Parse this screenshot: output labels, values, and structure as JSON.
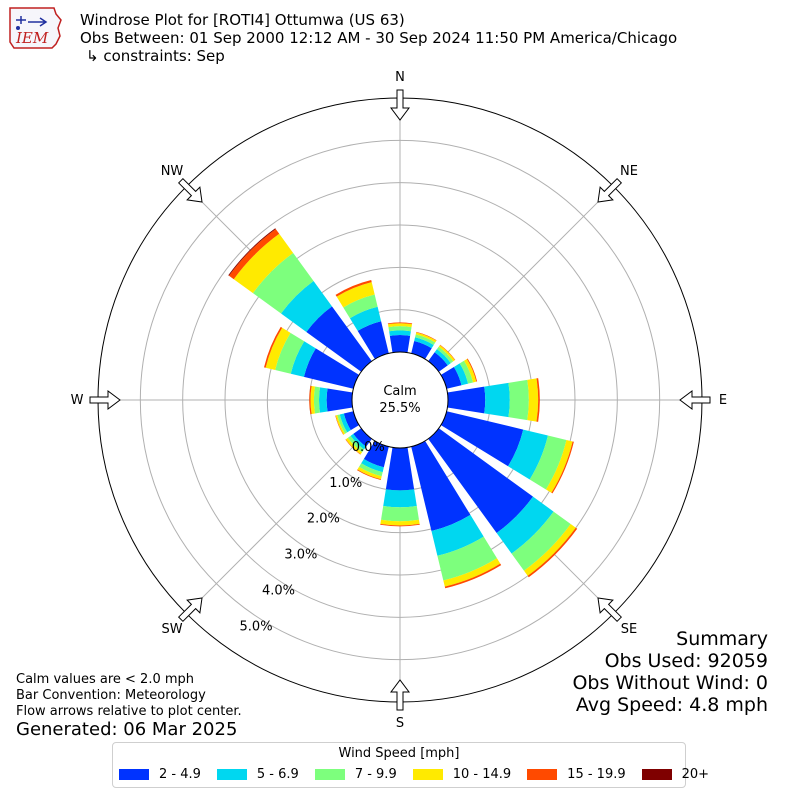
{
  "header": {
    "logo_text": "IEM",
    "title": "Windrose Plot for [ROTI4] Ottumwa (US 63)",
    "obs_between": "Obs Between: 01 Sep 2000 12:12 AM - 30 Sep 2024 11:50 PM America/Chicago",
    "constraints": "↳ constraints: Sep"
  },
  "chart_data": {
    "type": "windrose",
    "directions": [
      "N",
      "NNE",
      "NE",
      "ENE",
      "E",
      "ESE",
      "SE",
      "SSE",
      "S",
      "SSW",
      "SW",
      "WSW",
      "W",
      "WNW",
      "NW",
      "NNW"
    ],
    "direction_labels": [
      "N",
      "NE",
      "E",
      "SE",
      "S",
      "SW",
      "W",
      "NW"
    ],
    "calm": {
      "label": "Calm",
      "value": "25.5%"
    },
    "radial_unit": "percent",
    "radial_max": 6.0,
    "radial_ticks": [
      0.0,
      1.0,
      2.0,
      3.0,
      4.0,
      5.0
    ],
    "radial_tick_labels": [
      "0.0%",
      "1.0%",
      "2.0%",
      "3.0%",
      "4.0%",
      "5.0%"
    ],
    "grid": true,
    "bins": [
      {
        "label": "2 - 4.9",
        "color": "#0033ff"
      },
      {
        "label": "5 - 6.9",
        "color": "#00d7f0"
      },
      {
        "label": "7 - 9.9",
        "color": "#7dff7d"
      },
      {
        "label": "10 - 14.9",
        "color": "#ffea00"
      },
      {
        "label": "15 - 19.9",
        "color": "#ff4a00"
      },
      {
        "label": "20+",
        "color": "#7f0000"
      }
    ],
    "series": [
      {
        "direction": "N",
        "values": [
          0.4,
          0.11,
          0.1,
          0.07,
          0.02,
          0.0
        ]
      },
      {
        "direction": "NNE",
        "values": [
          0.3,
          0.09,
          0.07,
          0.05,
          0.01,
          0.0
        ]
      },
      {
        "direction": "NE",
        "values": [
          0.26,
          0.09,
          0.07,
          0.05,
          0.01,
          0.0
        ]
      },
      {
        "direction": "ENE",
        "values": [
          0.36,
          0.16,
          0.12,
          0.08,
          0.02,
          0.0
        ]
      },
      {
        "direction": "E",
        "values": [
          0.88,
          0.58,
          0.45,
          0.22,
          0.04,
          0.0
        ]
      },
      {
        "direction": "ESE",
        "values": [
          1.86,
          0.6,
          0.45,
          0.15,
          0.03,
          0.0
        ]
      },
      {
        "direction": "SE",
        "values": [
          2.75,
          0.6,
          0.5,
          0.15,
          0.04,
          0.0
        ]
      },
      {
        "direction": "SSE",
        "values": [
          2.05,
          0.6,
          0.6,
          0.15,
          0.04,
          0.0
        ]
      },
      {
        "direction": "S",
        "values": [
          1.0,
          0.4,
          0.33,
          0.1,
          0.02,
          0.0
        ]
      },
      {
        "direction": "SSW",
        "values": [
          0.5,
          0.12,
          0.1,
          0.07,
          0.02,
          0.0
        ]
      },
      {
        "direction": "SW",
        "values": [
          0.23,
          0.08,
          0.08,
          0.06,
          0.01,
          0.0
        ]
      },
      {
        "direction": "WSW",
        "values": [
          0.23,
          0.1,
          0.06,
          0.04,
          0.01,
          0.0
        ]
      },
      {
        "direction": "W",
        "values": [
          0.6,
          0.18,
          0.12,
          0.08,
          0.03,
          0.0
        ]
      },
      {
        "direction": "WNW",
        "values": [
          1.2,
          0.32,
          0.38,
          0.23,
          0.04,
          0.0
        ]
      },
      {
        "direction": "NW",
        "values": [
          1.6,
          0.74,
          0.82,
          0.56,
          0.14,
          0.02
        ]
      },
      {
        "direction": "NNW",
        "values": [
          0.78,
          0.35,
          0.3,
          0.3,
          0.05,
          0.0
        ]
      }
    ]
  },
  "notes": {
    "calm": "Calm values are < 2.0 mph",
    "bar": "Bar Convention: Meteorology",
    "flow": "Flow arrows relative to plot center."
  },
  "generated": "Generated: 06 Mar 2025",
  "summary": {
    "title": "Summary",
    "obs_used": "Obs Used: 92059",
    "obs_without_wind": "Obs Without Wind: 0",
    "avg_speed": "Avg Speed: 4.8 mph"
  },
  "legend": {
    "title": "Wind Speed [mph]"
  }
}
